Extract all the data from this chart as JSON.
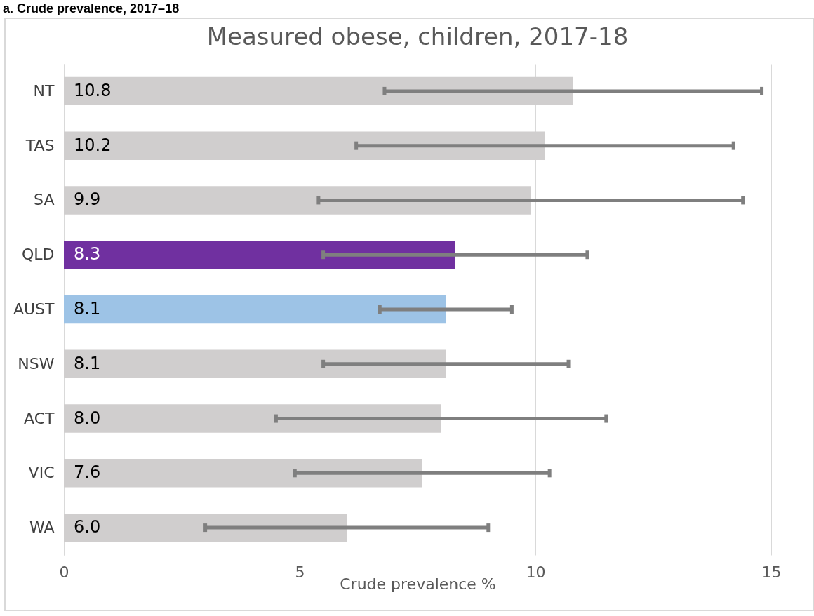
{
  "chart_data": {
    "type": "bar",
    "orientation": "horizontal",
    "title": "Measured obese, children, 2017-18",
    "xlabel": "Crude prevalence %",
    "annotations": [
      "a. Crude prevalence, 2017–18"
    ],
    "categories": [
      "NT",
      "TAS",
      "SA",
      "QLD",
      "AUST",
      "NSW",
      "ACT",
      "VIC",
      "WA"
    ],
    "values": [
      10.8,
      10.2,
      9.9,
      8.3,
      8.1,
      8.1,
      8.0,
      7.6,
      6.0
    ],
    "colors": [
      "#d0cece",
      "#d0cece",
      "#d0cece",
      "#7030a0",
      "#9dc3e6",
      "#d0cece",
      "#d0cece",
      "#d0cece",
      "#d0cece"
    ],
    "errors": [
      [
        6.8,
        14.8
      ],
      [
        6.2,
        14.2
      ],
      [
        5.4,
        14.4
      ],
      [
        5.5,
        11.1
      ],
      [
        6.7,
        9.5
      ],
      [
        5.5,
        10.7
      ],
      [
        4.5,
        11.5
      ],
      [
        4.9,
        10.3
      ],
      [
        3.0,
        9.0
      ]
    ],
    "value_labels": [
      "10.8",
      "10.2",
      "9.9",
      "8.3",
      "8.1",
      "8.1",
      "8.0",
      "7.6",
      "6.0"
    ],
    "xlim": [
      0,
      15
    ],
    "xticks": [
      0,
      5,
      10,
      15
    ],
    "grid": "x"
  }
}
